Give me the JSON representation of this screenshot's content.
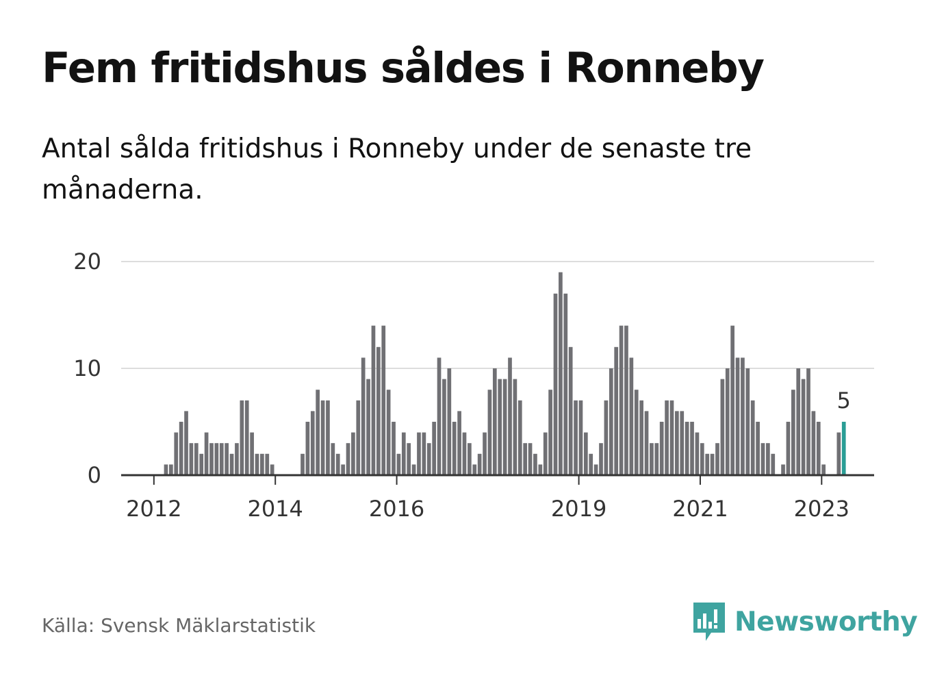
{
  "title": "Fem fritidshus såldes i Ronneby",
  "subtitle": "Antal sålda fritidshus i Ronneby under de senaste tre månaderna.",
  "source": "Källa: Svensk Mäklarstatistik",
  "brand": {
    "name": "Newsworthy",
    "icon": "newsworthy-logo-icon"
  },
  "colors": {
    "bars": "#707074",
    "highlight": "#2a9d95",
    "grid": "#dddddd",
    "axis": "#333333",
    "brand": "#3fa4a0"
  },
  "chart_data": {
    "type": "bar",
    "title": "Fem fritidshus såldes i Ronneby",
    "xlabel": "",
    "ylabel": "",
    "ylim": [
      0,
      20
    ],
    "yticks": [
      "0",
      "10",
      "20"
    ],
    "xticks": [
      "2012",
      "2014",
      "2016",
      "2019",
      "2021",
      "2023"
    ],
    "grid": true,
    "values": [
      0,
      0,
      0,
      0,
      0,
      0,
      0,
      0,
      1,
      1,
      4,
      5,
      6,
      3,
      3,
      2,
      4,
      3,
      3,
      3,
      3,
      2,
      3,
      7,
      7,
      4,
      2,
      2,
      2,
      1,
      0,
      0,
      0,
      0,
      0,
      2,
      5,
      6,
      8,
      7,
      7,
      3,
      2,
      1,
      3,
      4,
      7,
      11,
      9,
      14,
      12,
      14,
      8,
      5,
      2,
      4,
      3,
      1,
      4,
      4,
      3,
      5,
      11,
      9,
      10,
      5,
      6,
      4,
      3,
      1,
      2,
      4,
      8,
      10,
      9,
      9,
      11,
      9,
      7,
      3,
      3,
      2,
      1,
      4,
      8,
      17,
      19,
      17,
      12,
      7,
      7,
      4,
      2,
      1,
      3,
      7,
      10,
      12,
      14,
      14,
      11,
      8,
      7,
      6,
      3,
      3,
      5,
      7,
      7,
      6,
      6,
      5,
      5,
      4,
      3,
      2,
      2,
      3,
      9,
      10,
      14,
      11,
      11,
      10,
      7,
      5,
      3,
      3,
      2,
      0,
      1,
      5,
      8,
      10,
      9,
      10,
      6,
      5,
      1,
      0,
      0,
      4,
      5
    ],
    "highlight": {
      "value": 5,
      "label": "5"
    }
  }
}
